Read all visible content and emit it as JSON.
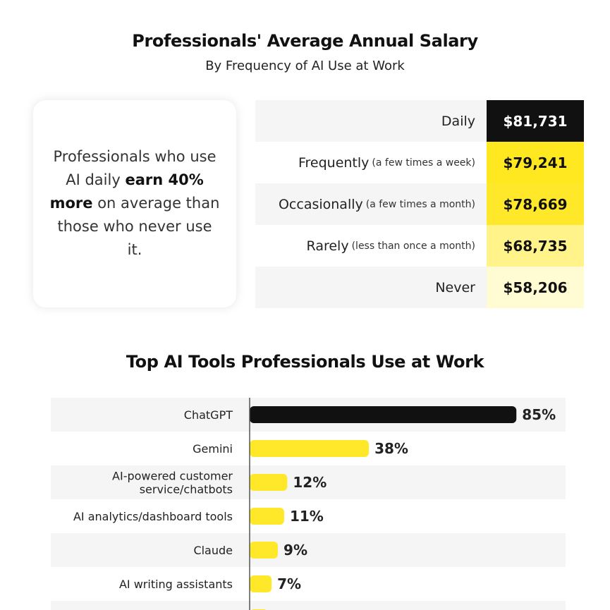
{
  "salary": {
    "title": "Professionals' Average Annual Salary",
    "subtitle": "By Frequency of AI Use at Work",
    "callout": {
      "part1": "Professionals who use AI daily ",
      "bold": "earn 40% more",
      "part2": " on average than those who never use it."
    },
    "rows": [
      {
        "label": "Daily",
        "note": "",
        "value": "$81,731",
        "bg": "#111111",
        "color": "#ffffff"
      },
      {
        "label": "Frequently",
        "note": "(a few times a week)",
        "value": "$79,241",
        "bg": "#ffe81f",
        "color": "#111111"
      },
      {
        "label": "Occasionally",
        "note": "(a few times a month)",
        "value": "$78,669",
        "bg": "#ffe82a",
        "color": "#111111"
      },
      {
        "label": "Rarely",
        "note": "(less than once a month)",
        "value": "$68,735",
        "bg": "#fff38a",
        "color": "#111111"
      },
      {
        "label": "Never",
        "note": "",
        "value": "$58,206",
        "bg": "#fffbd2",
        "color": "#111111"
      }
    ]
  },
  "tools": {
    "title": "Top AI Tools Professionals Use at Work"
  },
  "chart_data": {
    "type": "bar",
    "orientation": "horizontal",
    "title": "Top AI Tools Professionals Use at Work",
    "categories": [
      "ChatGPT",
      "Gemini",
      "AI-powered customer service/chatbots",
      "AI analytics/dashboard tools",
      "Claude",
      "AI writing assistants"
    ],
    "category_lines": [
      [
        "ChatGPT"
      ],
      [
        "Gemini"
      ],
      [
        "AI-powered customer",
        "service/chatbots"
      ],
      [
        "AI analytics/dashboard tools"
      ],
      [
        "Claude"
      ],
      [
        "AI writing assistants"
      ]
    ],
    "values": [
      85,
      38,
      12,
      11,
      9,
      7
    ],
    "value_labels": [
      "85%",
      "38%",
      "12%",
      "11%",
      "9%",
      "7%"
    ],
    "highlight_color": "#111111",
    "bar_color": "#ffe82a",
    "row_band_color": "#f5f5f5",
    "xlim": [
      0,
      100
    ],
    "grid": false
  }
}
